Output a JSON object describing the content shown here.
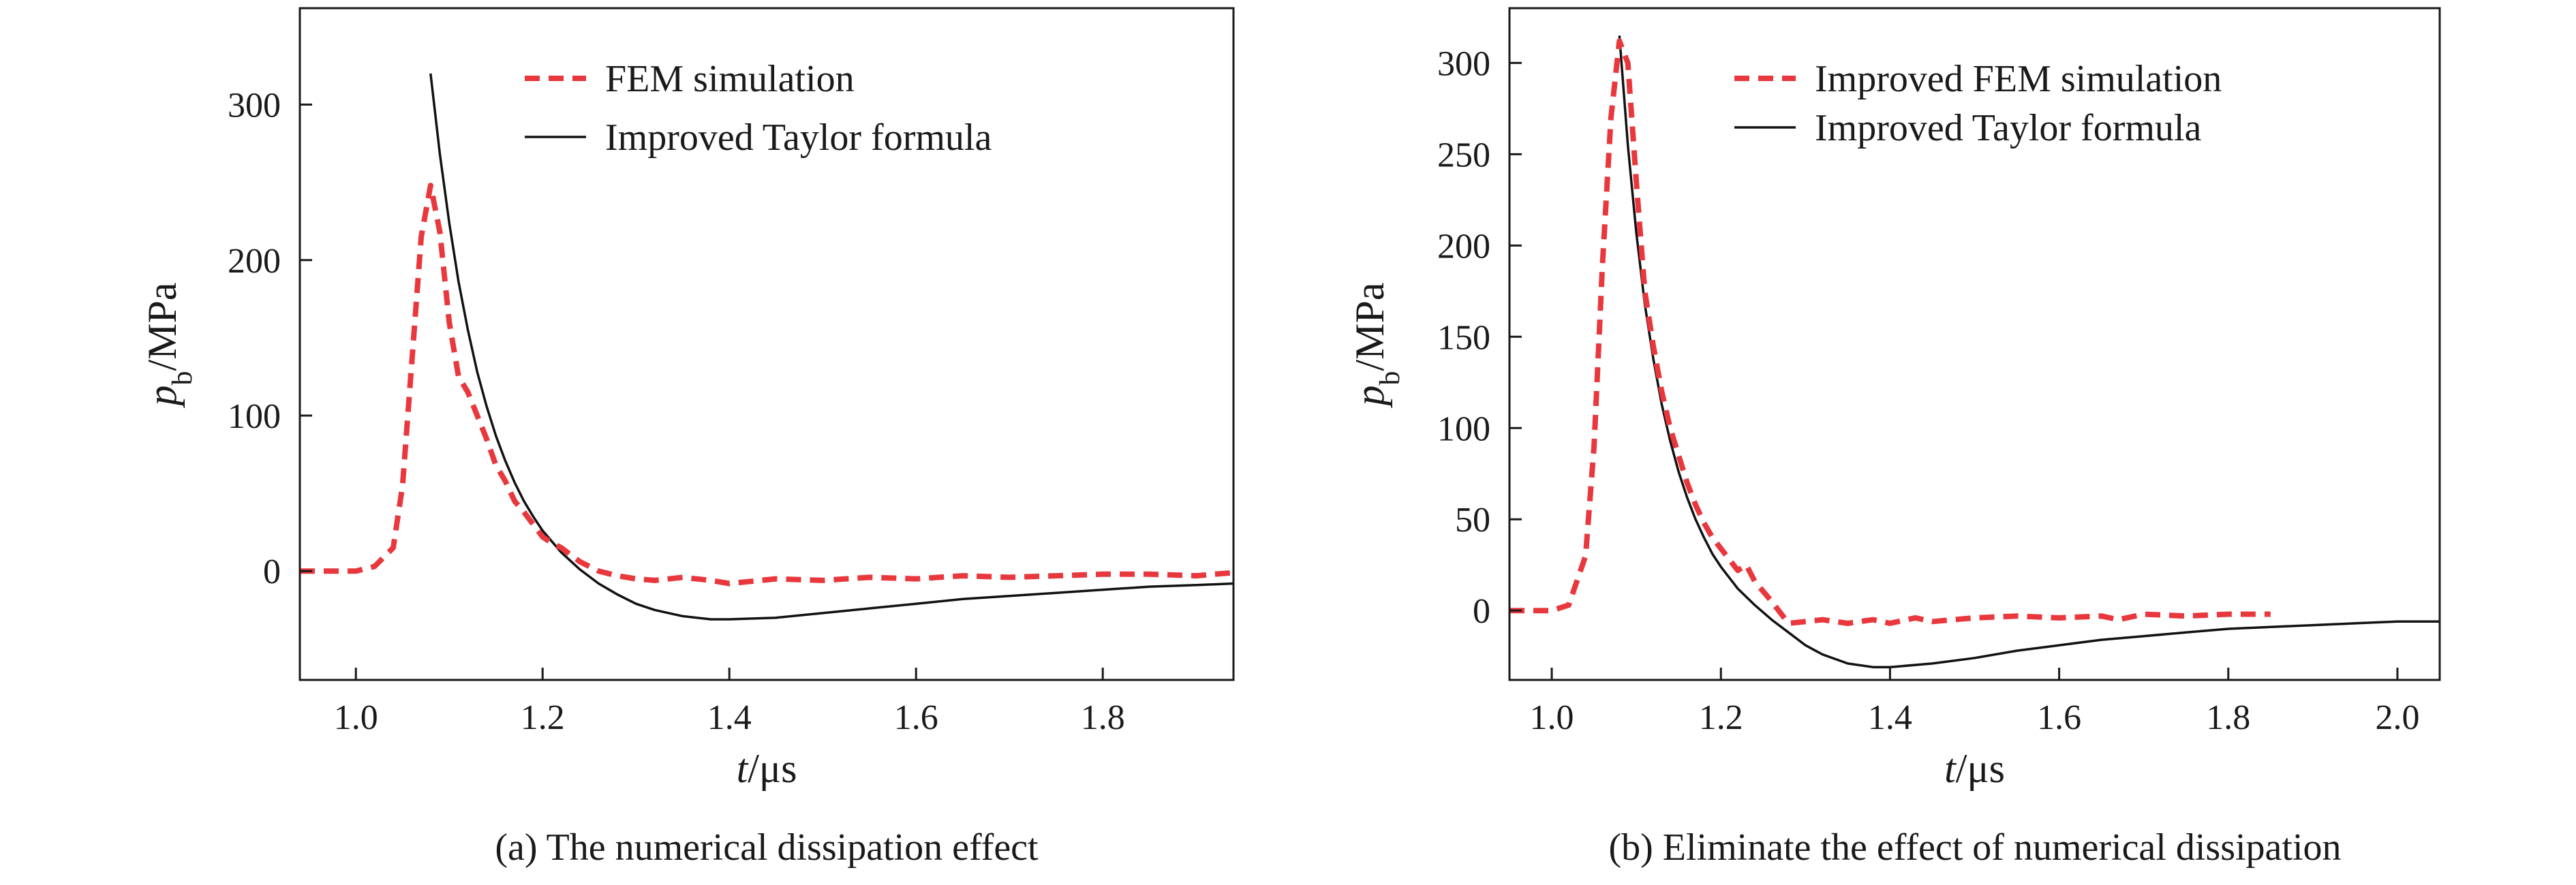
{
  "chart_data": [
    {
      "type": "line",
      "caption": "(a) The numerical dissipation effect",
      "xlabel": {
        "main": "t",
        "unit": "/μs"
      },
      "ylabel": {
        "main": "p",
        "sub": "b",
        "unit": "/MPa"
      },
      "xlim": [
        0.94,
        1.94
      ],
      "ylim": [
        -70,
        362
      ],
      "xticks": [
        1.0,
        1.2,
        1.4,
        1.6,
        1.8
      ],
      "xtick_labels": [
        "1.0",
        "1.2",
        "1.4",
        "1.6",
        "1.8"
      ],
      "yticks": [
        0,
        100,
        200,
        300
      ],
      "ytick_labels": [
        "0",
        "100",
        "200",
        "300"
      ],
      "grid": false,
      "legend": "top-center",
      "series": [
        {
          "name": "FEM simulation",
          "color": "#e8383d",
          "style": "dashed",
          "x": [
            0.94,
            1.0,
            1.02,
            1.04,
            1.05,
            1.06,
            1.07,
            1.08,
            1.09,
            1.1,
            1.11,
            1.12,
            1.13,
            1.14,
            1.15,
            1.16,
            1.17,
            1.18,
            1.19,
            1.2,
            1.21,
            1.22,
            1.24,
            1.26,
            1.28,
            1.3,
            1.32,
            1.35,
            1.38,
            1.4,
            1.45,
            1.5,
            1.55,
            1.6,
            1.65,
            1.7,
            1.75,
            1.8,
            1.85,
            1.9,
            1.94
          ],
          "y": [
            0,
            0,
            3,
            15,
            55,
            135,
            215,
            248,
            218,
            160,
            125,
            115,
            100,
            85,
            68,
            58,
            45,
            38,
            30,
            22,
            18,
            15,
            6,
            0,
            -3,
            -5,
            -6,
            -4,
            -6,
            -8,
            -5,
            -6,
            -4,
            -5,
            -3,
            -4,
            -3,
            -2,
            -2,
            -3,
            -1
          ]
        },
        {
          "name": "Improved Taylor formula",
          "color": "#111111",
          "style": "solid",
          "x": [
            1.08,
            1.09,
            1.1,
            1.11,
            1.12,
            1.13,
            1.14,
            1.15,
            1.16,
            1.17,
            1.18,
            1.19,
            1.2,
            1.22,
            1.24,
            1.26,
            1.28,
            1.3,
            1.32,
            1.35,
            1.38,
            1.4,
            1.45,
            1.5,
            1.55,
            1.6,
            1.65,
            1.7,
            1.75,
            1.8,
            1.85,
            1.9,
            1.94
          ],
          "y": [
            320,
            268,
            224,
            186,
            155,
            128,
            106,
            87,
            71,
            57,
            45,
            35,
            26,
            12,
            1,
            -8,
            -15,
            -21,
            -25,
            -29,
            -31,
            -31,
            -30,
            -27,
            -24,
            -21,
            -18,
            -16,
            -14,
            -12,
            -10,
            -9,
            -8
          ]
        }
      ]
    },
    {
      "type": "line",
      "caption": "(b) Eliminate the effect of numerical dissipation",
      "xlabel": {
        "main": "t",
        "unit": "/μs"
      },
      "ylabel": {
        "main": "p",
        "sub": "b",
        "unit": "/MPa"
      },
      "xlim": [
        0.95,
        2.05
      ],
      "ylim": [
        -38,
        330
      ],
      "xticks": [
        1.0,
        1.2,
        1.4,
        1.6,
        1.8,
        2.0
      ],
      "xtick_labels": [
        "1.0",
        "1.2",
        "1.4",
        "1.6",
        "1.8",
        "2.0"
      ],
      "yticks": [
        0,
        50,
        100,
        150,
        200,
        250,
        300
      ],
      "ytick_labels": [
        "0",
        "50",
        "100",
        "150",
        "200",
        "250",
        "300"
      ],
      "grid": false,
      "legend": "top-center",
      "series": [
        {
          "name": "Improved FEM simulation",
          "color": "#e8383d",
          "style": "dashed",
          "x": [
            0.95,
            1.0,
            1.02,
            1.04,
            1.05,
            1.06,
            1.07,
            1.08,
            1.09,
            1.1,
            1.11,
            1.12,
            1.13,
            1.14,
            1.15,
            1.16,
            1.17,
            1.18,
            1.19,
            1.2,
            1.21,
            1.22,
            1.23,
            1.24,
            1.26,
            1.28,
            1.3,
            1.32,
            1.35,
            1.38,
            1.4,
            1.43,
            1.45,
            1.5,
            1.55,
            1.6,
            1.65,
            1.67,
            1.7,
            1.75,
            1.8,
            1.85
          ],
          "y": [
            0,
            0,
            3,
            30,
            90,
            190,
            270,
            312,
            300,
            235,
            175,
            145,
            120,
            100,
            85,
            70,
            58,
            48,
            40,
            34,
            28,
            22,
            25,
            16,
            5,
            -7,
            -6,
            -5,
            -7,
            -5,
            -7,
            -4,
            -6,
            -4,
            -3,
            -4,
            -3,
            -5,
            -2,
            -3,
            -2,
            -2
          ]
        },
        {
          "name": "Improved Taylor formula",
          "color": "#111111",
          "style": "solid",
          "x": [
            1.08,
            1.09,
            1.1,
            1.11,
            1.12,
            1.13,
            1.14,
            1.15,
            1.16,
            1.17,
            1.18,
            1.19,
            1.2,
            1.22,
            1.24,
            1.26,
            1.28,
            1.3,
            1.32,
            1.35,
            1.38,
            1.4,
            1.45,
            1.5,
            1.55,
            1.6,
            1.65,
            1.7,
            1.75,
            1.8,
            1.85,
            1.9,
            1.95,
            2.0,
            2.05
          ],
          "y": [
            315,
            255,
            207,
            168,
            138,
            113,
            93,
            76,
            62,
            50,
            40,
            31,
            24,
            12,
            3,
            -5,
            -12,
            -19,
            -24,
            -29,
            -31,
            -31,
            -29,
            -26,
            -22,
            -19,
            -16,
            -14,
            -12,
            -10,
            -9,
            -8,
            -7,
            -6,
            -6
          ]
        }
      ]
    }
  ]
}
